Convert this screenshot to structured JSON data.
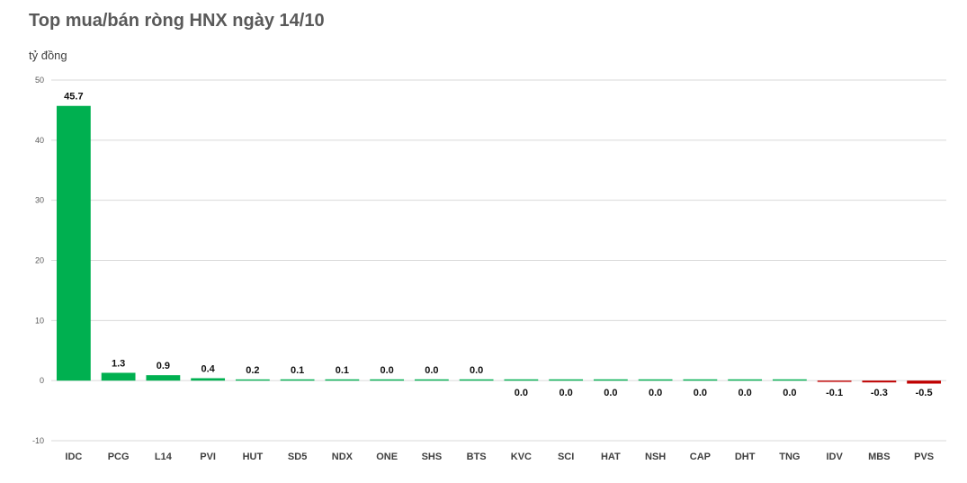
{
  "title": "Top mua/bán ròng HNX ngày 14/10",
  "unit_label": "tỷ đồng",
  "colors": {
    "positive": "#00b050",
    "negative": "#c00000",
    "grid": "#d9d9d9"
  },
  "chart_data": {
    "type": "bar",
    "title": "Top mua/bán ròng HNX ngày 14/10",
    "ylabel": "tỷ đồng",
    "xlabel": "",
    "ylim": [
      -10,
      50
    ],
    "yticks": [
      -10,
      0,
      10,
      20,
      30,
      40,
      50
    ],
    "grid": true,
    "categories": [
      "IDC",
      "PCG",
      "L14",
      "PVI",
      "HUT",
      "SD5",
      "NDX",
      "ONE",
      "SHS",
      "BTS",
      "KVC",
      "SCI",
      "HAT",
      "NSH",
      "CAP",
      "DHT",
      "TNG",
      "IDV",
      "MBS",
      "PVS"
    ],
    "values": [
      45.7,
      1.3,
      0.9,
      0.4,
      0.2,
      0.1,
      0.1,
      0.0,
      0.0,
      0.0,
      0.0,
      0.0,
      0.0,
      0.0,
      0.0,
      0.0,
      0.0,
      -0.1,
      -0.3,
      -0.5
    ],
    "data_labels": [
      "45.7",
      "1.3",
      "0.9",
      "0.4",
      "0.2",
      "0.1",
      "0.1",
      "0.0",
      "0.0",
      "0.0",
      "0.0",
      "0.0",
      "0.0",
      "0.0",
      "0.0",
      "0.0",
      "0.0",
      "-0.1",
      "-0.3",
      "-0.5"
    ],
    "label_side": [
      "above",
      "above",
      "above",
      "above",
      "above",
      "above",
      "above",
      "above",
      "above",
      "above",
      "below",
      "below",
      "below",
      "below",
      "below",
      "below",
      "below",
      "below",
      "below",
      "below"
    ]
  }
}
